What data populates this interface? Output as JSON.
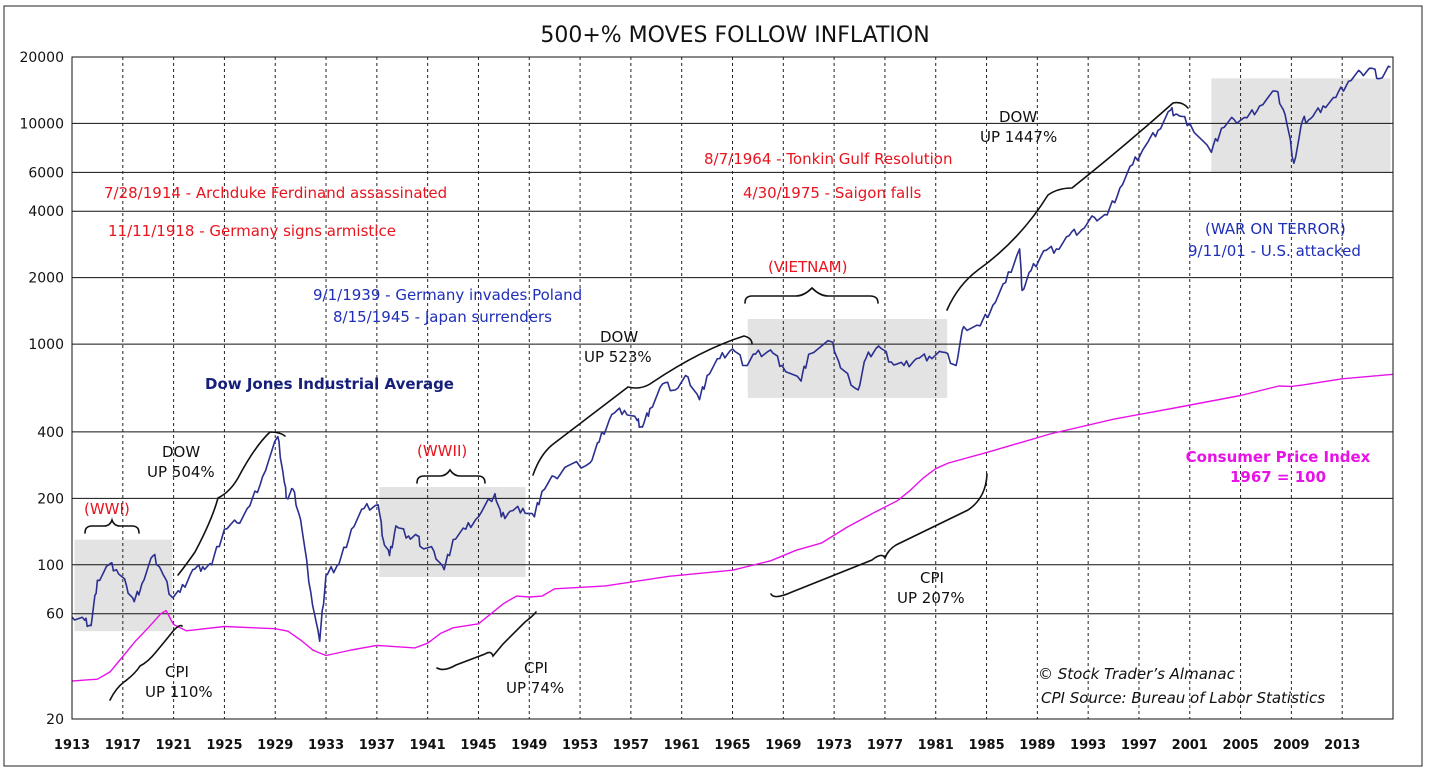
{
  "chart_data": {
    "type": "line",
    "title": "500+% MOVES FOLLOW INFLATION",
    "y_scale": "log",
    "ylim": [
      20,
      20000
    ],
    "xlim": [
      1913,
      2017
    ],
    "y_ticks": [
      "20",
      "60",
      "100",
      "200",
      "400",
      "1000",
      "2000",
      "4000",
      "6000",
      "10000",
      "20000"
    ],
    "x_ticks": [
      "1913",
      "1917",
      "1921",
      "1925",
      "1929",
      "1933",
      "1937",
      "1941",
      "1945",
      "1949",
      "1953",
      "1957",
      "1961",
      "1965",
      "1969",
      "1973",
      "1977",
      "1981",
      "1985",
      "1989",
      "1993",
      "1997",
      "2001",
      "2005",
      "2009",
      "2013"
    ],
    "series": [
      {
        "name": "Dow Jones Industrial Average",
        "color": "#2b2f8f",
        "x": [
          1913,
          1914,
          1914.5,
          1915,
          1915.9,
          1916.5,
          1917.3,
          1917.9,
          1918.5,
          1919.4,
          1920,
          1920.8,
          1921.5,
          1922.5,
          1923.3,
          1924,
          1925,
          1926,
          1927,
          1928,
          1929.2,
          1929.7,
          1929.9,
          1930.4,
          1931,
          1931.8,
          1932.5,
          1933,
          1933.5,
          1934,
          1935,
          1936,
          1937.1,
          1937.5,
          1938,
          1938.5,
          1939.5,
          1940.2,
          1940.5,
          1941.5,
          1942.3,
          1943,
          1944,
          1945,
          1946.3,
          1946.8,
          1947.5,
          1948.5,
          1949.4,
          1950,
          1951,
          1952,
          1953.8,
          1954.5,
          1955.5,
          1956.5,
          1957.5,
          1957.9,
          1958.5,
          1959.5,
          1960.5,
          1961.5,
          1962.4,
          1963,
          1964,
          1965,
          1966,
          1966.8,
          1968,
          1968.9,
          1970.4,
          1971,
          1972.9,
          1973.5,
          1974.9,
          1975.5,
          1976.5,
          1977.5,
          1978.5,
          1979.5,
          1980.5,
          1981.5,
          1982.6,
          1983.2,
          1984.5,
          1985.5,
          1986.5,
          1987.6,
          1987.8,
          1988.5,
          1989.5,
          1990.5,
          1991.5,
          1992.5,
          1993.5,
          1994.5,
          1995.5,
          1996.5,
          1997.5,
          1998.5,
          1999.5,
          2000,
          2001,
          2002.7,
          2003.5,
          2004.5,
          2005.5,
          2006.5,
          2007.8,
          2008.5,
          2009.2,
          2009.9,
          2010.5,
          2011.5,
          2012.5,
          2013.5,
          2014.5,
          2015.3,
          2016,
          2016.8
        ],
        "values": [
          58,
          56,
          53,
          85,
          100,
          95,
          80,
          68,
          82,
          110,
          95,
          72,
          75,
          95,
          98,
          100,
          145,
          155,
          185,
          250,
          381,
          240,
          200,
          220,
          160,
          75,
          45,
          90,
          95,
          100,
          145,
          180,
          187,
          130,
          110,
          150,
          135,
          135,
          120,
          115,
          95,
          130,
          145,
          165,
          210,
          165,
          175,
          180,
          165,
          215,
          250,
          280,
          290,
          360,
          480,
          500,
          450,
          420,
          510,
          660,
          620,
          710,
          560,
          720,
          860,
          950,
          800,
          900,
          940,
          800,
          680,
          900,
          1020,
          780,
          620,
          860,
          980,
          830,
          800,
          860,
          880,
          920,
          800,
          1200,
          1210,
          1500,
          1900,
          2700,
          1750,
          2150,
          2650,
          2700,
          3100,
          3300,
          3750,
          3850,
          5100,
          6500,
          7900,
          9300,
          11500,
          11000,
          10000,
          7400,
          9500,
          10400,
          10600,
          12000,
          14000,
          11000,
          6600,
          10400,
          10500,
          12000,
          13100,
          15500,
          17000,
          17800,
          16000,
          18000
        ]
      },
      {
        "name": "Consumer Price Index",
        "color": "#e812e8",
        "x": [
          1913,
          1914,
          1915,
          1916,
          1917,
          1918,
          1919,
          1920,
          1920.4,
          1921,
          1922,
          1925,
          1929,
          1930,
          1931,
          1932,
          1933,
          1935,
          1937,
          1940,
          1941,
          1942,
          1943,
          1945,
          1947,
          1948,
          1949,
          1950,
          1951,
          1955,
          1960,
          1965,
          1968,
          1970,
          1972,
          1974,
          1976,
          1978,
          1979,
          1980,
          1981,
          1982,
          1985,
          1990,
          1995,
          2000,
          2005,
          2008,
          2009,
          2010,
          2013,
          2017
        ],
        "values": [
          29.7,
          30,
          30.3,
          32.7,
          38.4,
          45.1,
          51.8,
          60,
          62,
          53.6,
          50.2,
          52.5,
          51.3,
          50,
          45.6,
          40.9,
          38.8,
          41.1,
          43.1,
          42.0,
          44.1,
          48.8,
          51.8,
          54,
          66.9,
          72.1,
          71.4,
          72.1,
          77.8,
          80.2,
          88.7,
          94.5,
          104.2,
          116.3,
          125.3,
          147.7,
          170.5,
          195.4,
          217.4,
          246.8,
          272.4,
          289.1,
          322.2,
          391.4,
          456.5,
          515.8,
          585.0,
          645.5,
          643.3,
          653.8,
          696.1,
          730
        ]
      }
    ],
    "shaded_periods": [
      {
        "label": "(WWI)",
        "start": 1913.2,
        "end": 1920.9,
        "low": 50,
        "high": 130
      },
      {
        "label": "(WWII)",
        "start": 1937.2,
        "end": 1948.7,
        "low": 88,
        "high": 225
      },
      {
        "label": "(VIETNAM)",
        "start": 1966.2,
        "end": 1981.9,
        "low": 570,
        "high": 1300
      },
      {
        "label": "(WAR ON TERROR)",
        "start": 2002.7,
        "end": 2016.8,
        "low": 6000,
        "high": 16000
      }
    ],
    "annotations": {
      "events_red": [
        "7/28/1914 - Archduke Ferdinand assassinated",
        "11/11/1918 - Germany signs armistice",
        "8/7/1964 - Tonkin Gulf Resolution",
        "4/30/1975 - Saigon falls"
      ],
      "events_blue": [
        "9/1/1939 - Germany invades Poland",
        "8/15/1945 - Japan surrenders",
        "9/11/01 - U.S. attacked"
      ],
      "moves": [
        {
          "line1": "DOW",
          "line2": "UP 504%"
        },
        {
          "line1": "DOW",
          "line2": "UP 523%"
        },
        {
          "line1": "DOW",
          "line2": "UP 1447%"
        },
        {
          "line1": "CPI",
          "line2": "UP 110%"
        },
        {
          "line1": "CPI",
          "line2": "UP 74%"
        },
        {
          "line1": "CPI",
          "line2": "UP 207%"
        }
      ],
      "dow_label": "Dow Jones Industrial Average",
      "cpi_label_line1": "Consumer Price Index",
      "cpi_label_line2": "1967 = 100",
      "copyright": "© Stock Trader’s Almanac",
      "source": "CPI Source: Bureau of Labor Statistics"
    }
  }
}
